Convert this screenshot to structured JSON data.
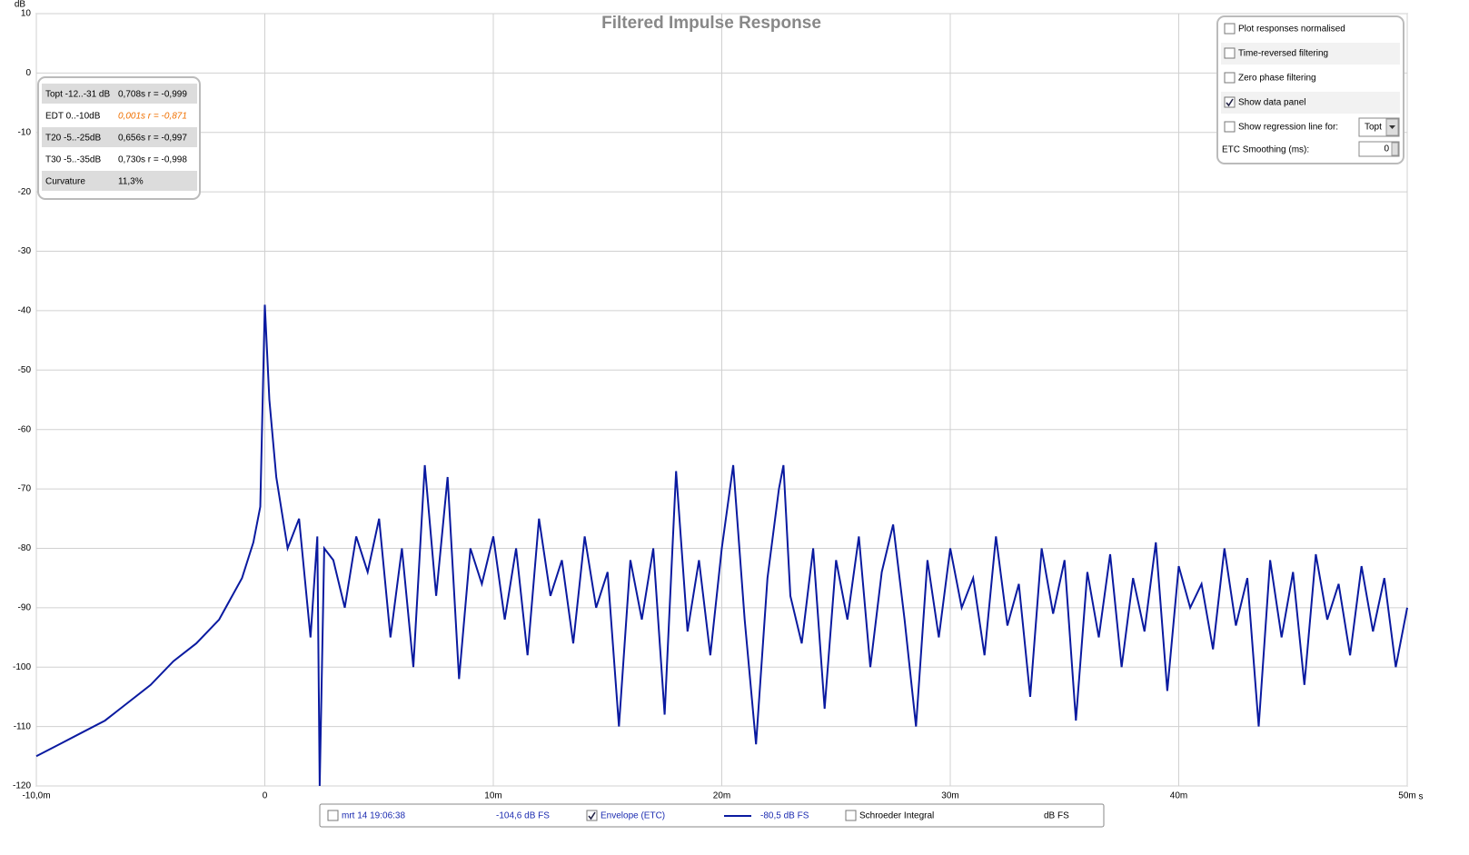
{
  "chart_data": {
    "type": "line",
    "title": "Filtered Impulse Response",
    "xlabel": "s",
    "ylabel": "dB",
    "x": [
      -10,
      -9,
      -8,
      -7,
      -6,
      -5,
      -4,
      -3,
      -2,
      -1,
      -0.5,
      -0.2,
      0,
      0.2,
      0.5,
      1,
      1.5,
      2,
      2.3,
      2.4,
      2.6,
      3,
      3.5,
      4,
      4.5,
      5,
      5.5,
      6,
      6.5,
      7,
      7.5,
      8,
      8.5,
      9,
      9.5,
      10,
      10.5,
      11,
      11.5,
      12,
      12.5,
      13,
      13.5,
      14,
      14.5,
      15,
      15.5,
      16,
      16.5,
      17,
      17.5,
      18,
      18.5,
      19,
      19.5,
      20,
      20.5,
      21,
      21.5,
      22,
      22.5,
      22.7,
      23,
      23.5,
      24,
      24.5,
      25,
      25.5,
      26,
      26.5,
      27,
      27.5,
      28,
      28.5,
      29,
      29.5,
      30,
      30.5,
      31,
      31.5,
      32,
      32.5,
      33,
      33.5,
      34,
      34.5,
      35,
      35.5,
      36,
      36.5,
      37,
      37.5,
      38,
      38.5,
      39,
      39.5,
      40,
      40.5,
      41,
      41.5,
      42,
      42.5,
      43,
      43.5,
      44,
      44.5,
      45,
      45.5,
      46,
      46.5,
      47,
      47.5,
      48,
      48.5,
      49,
      49.5,
      50
    ],
    "series": [
      {
        "name": "Envelope (ETC)",
        "color": "#0a1aa0",
        "values": [
          -115,
          -113,
          -111,
          -109,
          -106,
          -103,
          -99,
          -96,
          -92,
          -85,
          -79,
          -73,
          -39,
          -55,
          -68,
          -80,
          -75,
          -95,
          -78,
          -120,
          -80,
          -82,
          -90,
          -78,
          -84,
          -75,
          -95,
          -80,
          -100,
          -66,
          -88,
          -68,
          -102,
          -80,
          -86,
          -78,
          -92,
          -80,
          -98,
          -75,
          -88,
          -82,
          -96,
          -78,
          -90,
          -84,
          -110,
          -82,
          -92,
          -80,
          -108,
          -67,
          -94,
          -82,
          -98,
          -80,
          -66,
          -92,
          -113,
          -85,
          -70,
          -66,
          -88,
          -96,
          -80,
          -107,
          -82,
          -92,
          -78,
          -100,
          -84,
          -76,
          -92,
          -110,
          -82,
          -95,
          -80,
          -90,
          -85,
          -98,
          -78,
          -93,
          -86,
          -105,
          -80,
          -91,
          -82,
          -109,
          -84,
          -95,
          -81,
          -100,
          -85,
          -94,
          -79,
          -104,
          -83,
          -90,
          -86,
          -97,
          -80,
          -93,
          -85,
          -110,
          -82,
          -95,
          -84,
          -103,
          -81,
          -92,
          -86,
          -98,
          -83,
          -94,
          -85,
          -100,
          -90
        ]
      }
    ],
    "xlim": [
      -10,
      50
    ],
    "ylim": [
      -120,
      10
    ],
    "xticks": [
      {
        "value": -10,
        "label": "-10,0m"
      },
      0,
      {
        "value": 10,
        "label": "10m"
      },
      {
        "value": 20,
        "label": "20m"
      },
      {
        "value": 30,
        "label": "30m"
      },
      {
        "value": 40,
        "label": "40m"
      },
      {
        "value": 50,
        "label": "50m"
      }
    ],
    "yticks": [
      10,
      0,
      -10,
      -20,
      -30,
      -40,
      -50,
      -60,
      -70,
      -80,
      -90,
      -100,
      -110,
      -120
    ],
    "grid": true
  },
  "data_panel": [
    [
      "Topt -12..-31 dB",
      "0,708s  r = -0,999"
    ],
    [
      "EDT  0..-10dB",
      "0,001s r = -0,871"
    ],
    [
      "T20 -5..-25dB",
      "0,656s  r = -0,997"
    ],
    [
      "T30 -5..-35dB",
      "0,730s  r = -0,998"
    ],
    [
      "Curvature",
      "11,3%"
    ]
  ],
  "options": [
    {
      "label": "Plot responses normalised",
      "checked": false
    },
    {
      "label": "Time-reversed filtering",
      "checked": false
    },
    {
      "label": "Zero phase filtering",
      "checked": false
    },
    {
      "label": "Show data panel",
      "checked": true
    },
    {
      "label": "Show regression line for:",
      "checked": false
    }
  ],
  "regression_choice": "Topt",
  "smoothing_label": "ETC Smoothing (ms):",
  "smoothing_value": "0",
  "legend_bar": {
    "date": "mrt 14 19:06:38",
    "level1": "-104,6 dB FS",
    "envelope_checked": true,
    "level2": "-80,5 dB FS",
    "schroeder": "Schroeder Integral",
    "schroeder_checked": false,
    "unit": "dB FS"
  }
}
